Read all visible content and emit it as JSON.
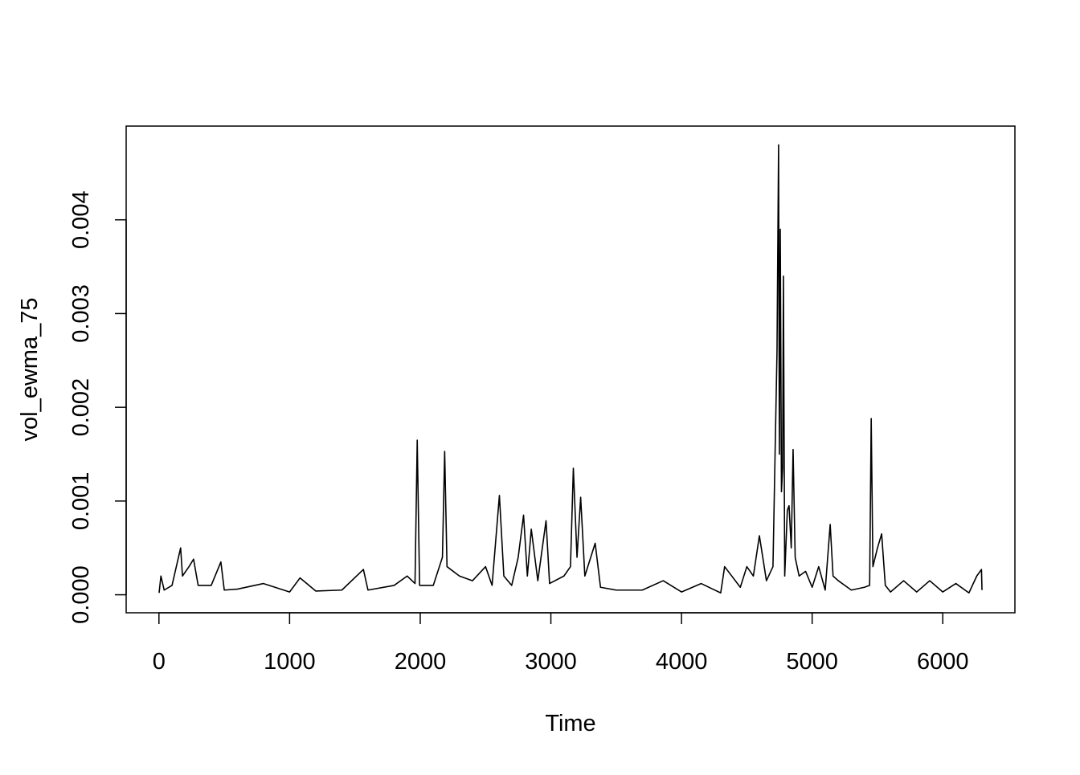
{
  "chart_data": {
    "type": "line",
    "xlabel": "Time",
    "ylabel": "vol_ewma_75",
    "color": "#000000",
    "x": [
      1,
      15,
      40,
      100,
      166,
      180,
      230,
      265,
      300,
      400,
      474,
      500,
      600,
      800,
      1000,
      1080,
      1200,
      1400,
      1565,
      1600,
      1800,
      1900,
      1960,
      1977,
      1995,
      2100,
      2170,
      2187,
      2205,
      2300,
      2400,
      2500,
      2550,
      2606,
      2640,
      2700,
      2750,
      2791,
      2820,
      2850,
      2900,
      2963,
      2990,
      3100,
      3150,
      3172,
      3200,
      3228,
      3260,
      3339,
      3380,
      3500,
      3700,
      3860,
      4000,
      4150,
      4300,
      4330,
      4450,
      4500,
      4550,
      4596,
      4650,
      4700,
      4731,
      4743,
      4749,
      4756,
      4765,
      4774,
      4780,
      4790,
      4810,
      4823,
      4840,
      4854,
      4870,
      4900,
      4950,
      5000,
      5050,
      5100,
      5138,
      5160,
      5200,
      5300,
      5400,
      5440,
      5452,
      5465,
      5500,
      5532,
      5560,
      5600,
      5700,
      5800,
      5900,
      6000,
      6100,
      6200,
      6260,
      6296,
      6300
    ],
    "values": [
      2e-05,
      0.0002,
      5e-05,
      0.0001,
      0.0005,
      0.0002,
      0.0003,
      0.00038,
      0.0001,
      0.0001,
      0.00035,
      5e-05,
      6e-05,
      0.00012,
      3e-05,
      0.00018,
      4e-05,
      5e-05,
      0.00027,
      5e-05,
      0.0001,
      0.0002,
      0.00012,
      0.00165,
      0.0001,
      0.0001,
      0.0004,
      0.00153,
      0.0003,
      0.0002,
      0.00015,
      0.0003,
      0.0001,
      0.00106,
      0.0002,
      0.0001,
      0.0004,
      0.00085,
      0.0002,
      0.0007,
      0.00015,
      0.00079,
      0.00012,
      0.0002,
      0.0003,
      0.00135,
      0.0004,
      0.00104,
      0.0002,
      0.00055,
      8e-05,
      5e-05,
      5e-05,
      0.00015,
      3e-05,
      0.00012,
      2e-05,
      0.0003,
      8e-05,
      0.0003,
      0.0002,
      0.00063,
      0.00015,
      0.0003,
      0.0026,
      0.0048,
      0.0015,
      0.0039,
      0.0011,
      0.00135,
      0.0034,
      0.0002,
      0.0009,
      0.00095,
      0.0005,
      0.00155,
      0.0004,
      0.0002,
      0.00025,
      8e-05,
      0.0003,
      5e-05,
      0.00075,
      0.0002,
      0.00015,
      5e-05,
      8e-05,
      0.0001,
      0.00188,
      0.0003,
      0.0005,
      0.00065,
      0.0001,
      3e-05,
      0.00015,
      3e-05,
      0.00015,
      3e-05,
      0.00012,
      2e-05,
      0.0002,
      0.00027,
      5e-05
    ],
    "xlim": [
      -251,
      6552
    ],
    "ylim": [
      -0.000192,
      0.005
    ],
    "xticks": [
      0,
      1000,
      2000,
      3000,
      4000,
      5000,
      6000
    ],
    "yticks": [
      {
        "value": 0,
        "label": "0.000"
      },
      {
        "value": 0.001,
        "label": "0.001"
      },
      {
        "value": 0.002,
        "label": "0.002"
      },
      {
        "value": 0.003,
        "label": "0.003"
      },
      {
        "value": 0.004,
        "label": "0.004"
      }
    ]
  }
}
